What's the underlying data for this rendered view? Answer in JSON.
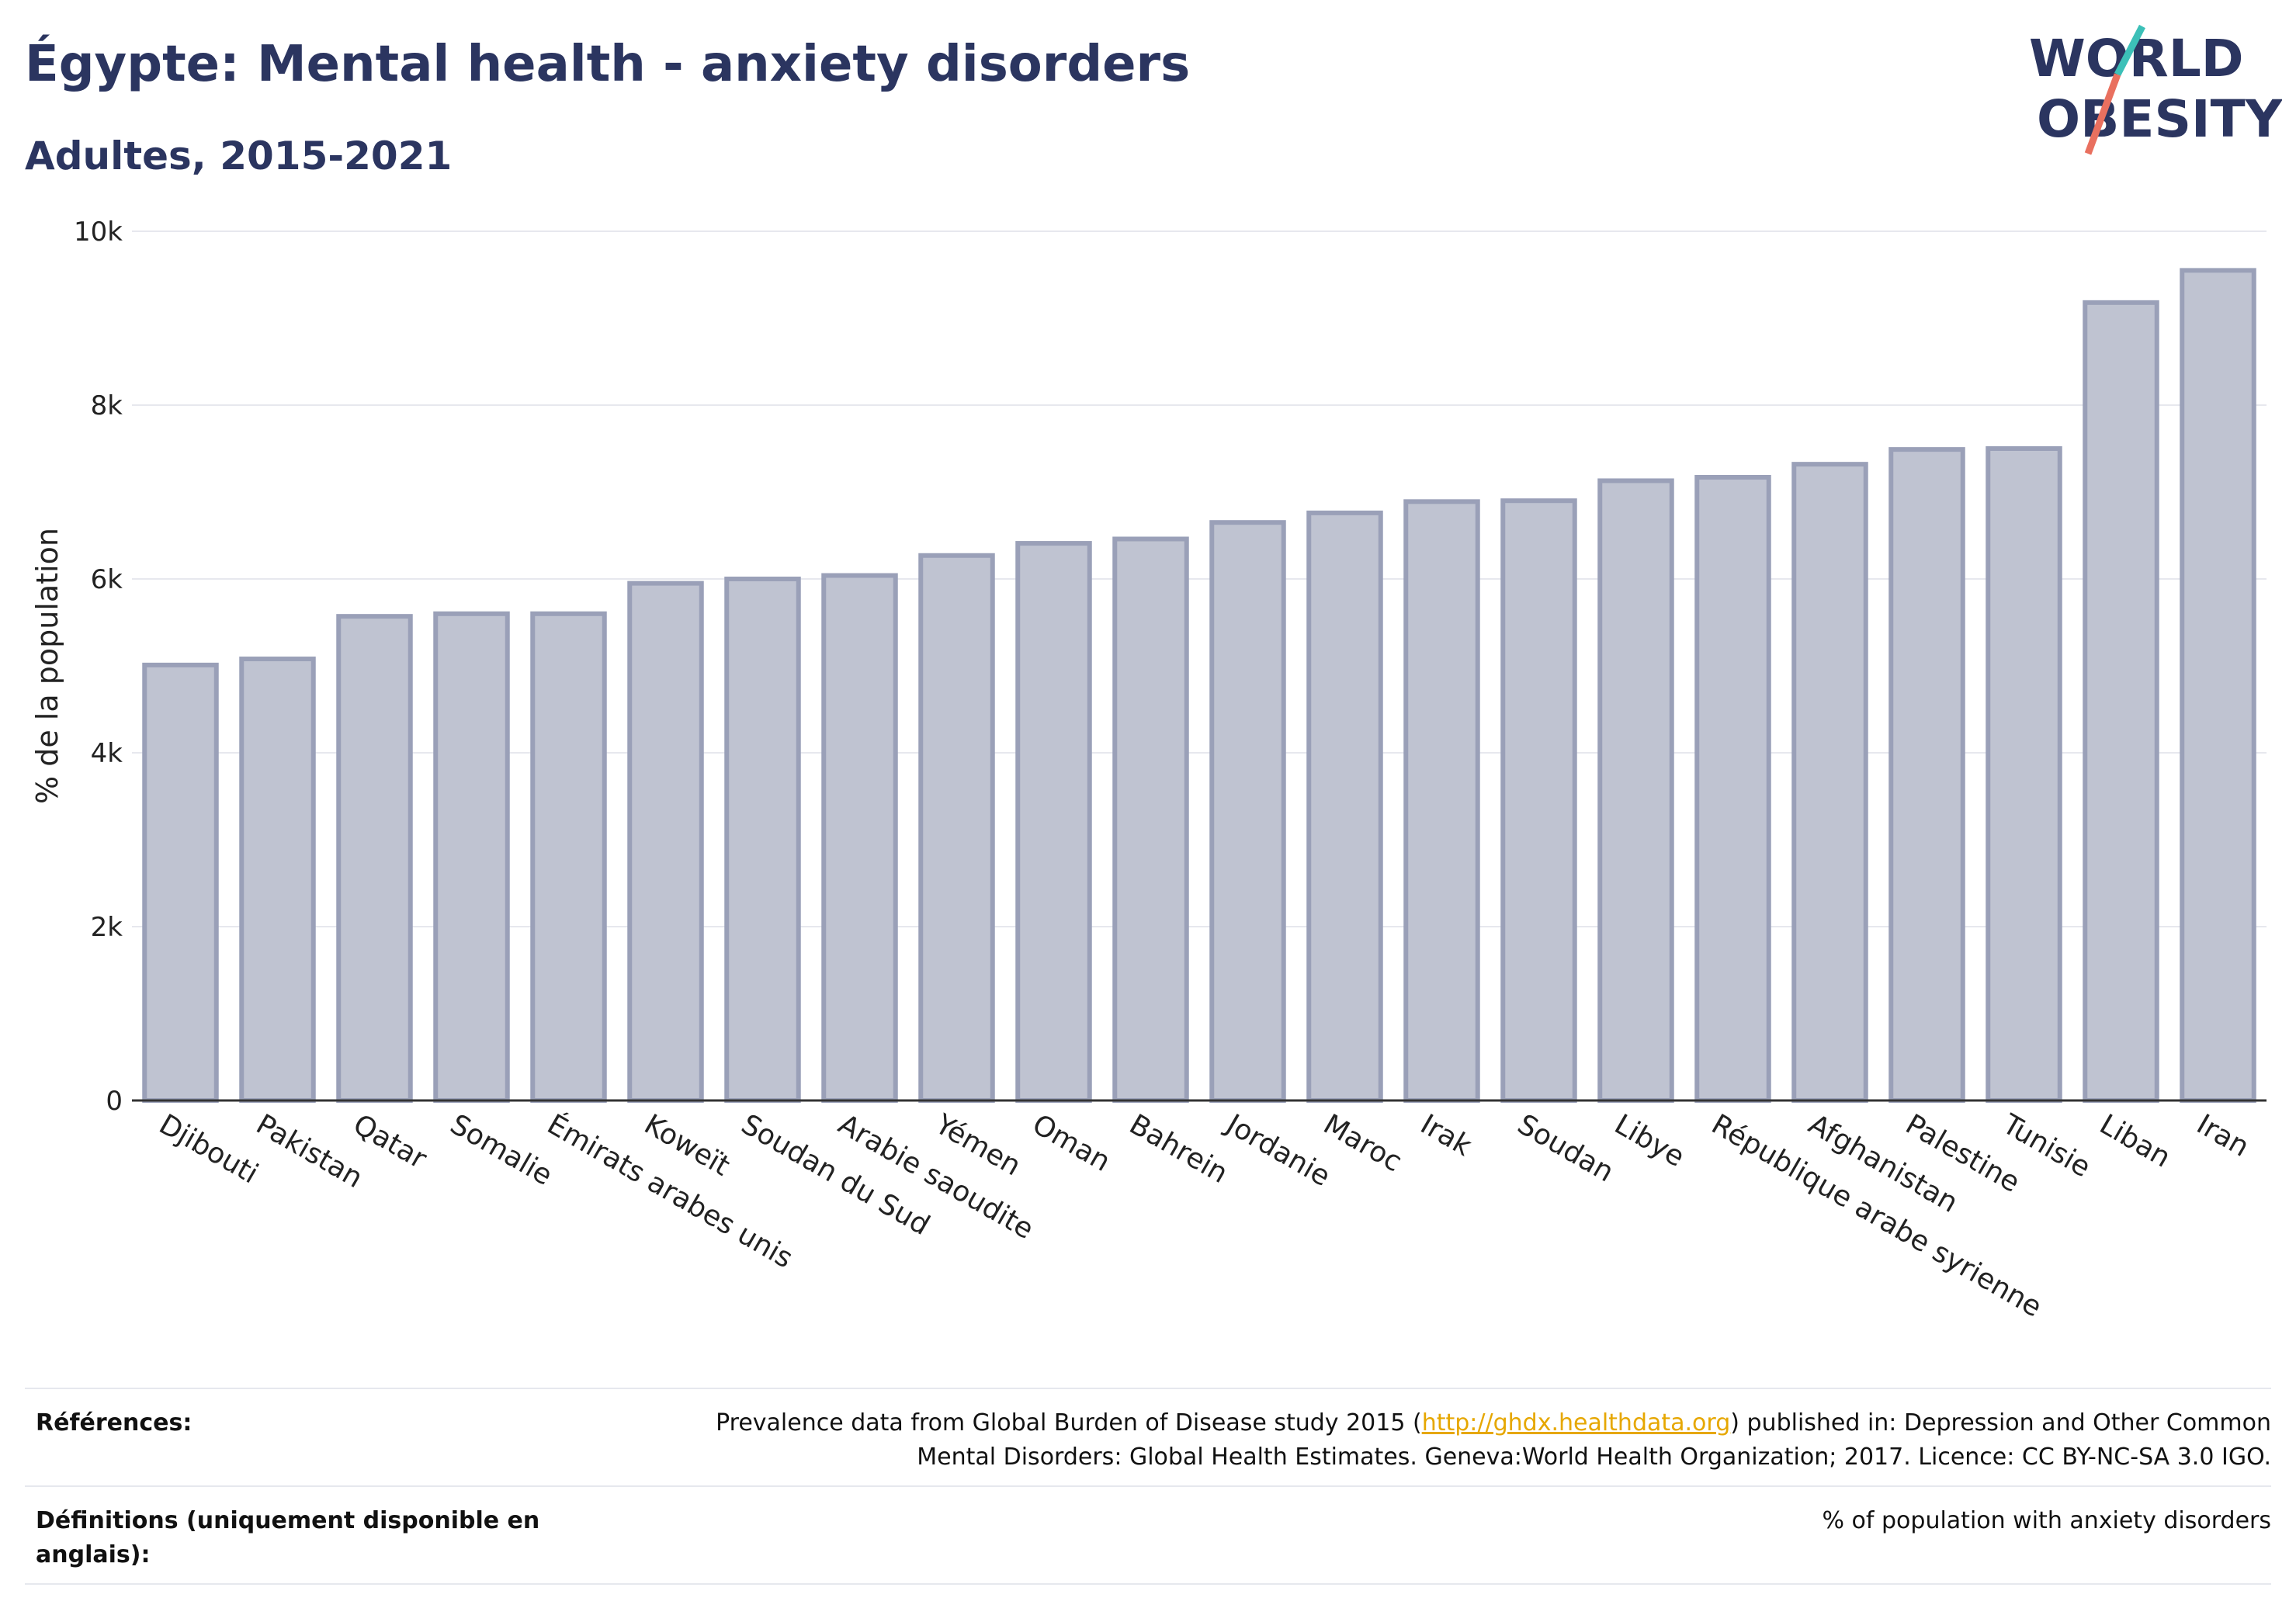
{
  "header": {
    "title": "Égypte: Mental health - anxiety disorders",
    "subtitle": "Adultes, 2015-2021"
  },
  "logo": {
    "line1": "WORLD",
    "line2": "OBESITY"
  },
  "chart_data": {
    "type": "bar",
    "title": "Égypte: Mental health - anxiety disorders",
    "subtitle": "Adultes, 2015-2021",
    "xlabel": "",
    "ylabel": "% de la population",
    "ylim": [
      0,
      10000
    ],
    "yticks": [
      0,
      2000,
      4000,
      6000,
      8000,
      10000
    ],
    "ytick_labels": [
      "0",
      "2k",
      "4k",
      "6k",
      "8k",
      "10k"
    ],
    "grid": true,
    "bar_color": "#bfc3d1",
    "bar_edge_color": "#9aa0b8",
    "categories": [
      "Djibouti",
      "Pakistan",
      "Qatar",
      "Somalie",
      "Émirats arabes unis",
      "Koweït",
      "Soudan du Sud",
      "Arabie saoudite",
      "Yémen",
      "Oman",
      "Bahrein",
      "Jordanie",
      "Maroc",
      "Irak",
      "Soudan",
      "Libye",
      "République arabe syrienne",
      "Afghanistan",
      "Palestine",
      "Tunisie",
      "Liban",
      "Iran"
    ],
    "values": [
      5010,
      5080,
      5570,
      5600,
      5600,
      5950,
      6000,
      6040,
      6270,
      6410,
      6460,
      6650,
      6760,
      6890,
      6900,
      7130,
      7170,
      7320,
      7490,
      7500,
      9180,
      9550
    ]
  },
  "references": {
    "ref_label": "Références:",
    "ref_text_before": "Prevalence data from Global Burden of Disease study 2015 (",
    "ref_link": "http://ghdx.healthdata.org",
    "ref_text_after": ") published in: Depression and Other Common",
    "ref_text_line2": "Mental Disorders: Global Health Estimates. Geneva:World Health Organization; 2017. Licence: CC BY-NC-SA 3.0 IGO.",
    "def_label_line1": "Définitions (uniquement disponible en",
    "def_label_line2": "anglais):",
    "def_text": "% of population with anxiety disorders"
  }
}
